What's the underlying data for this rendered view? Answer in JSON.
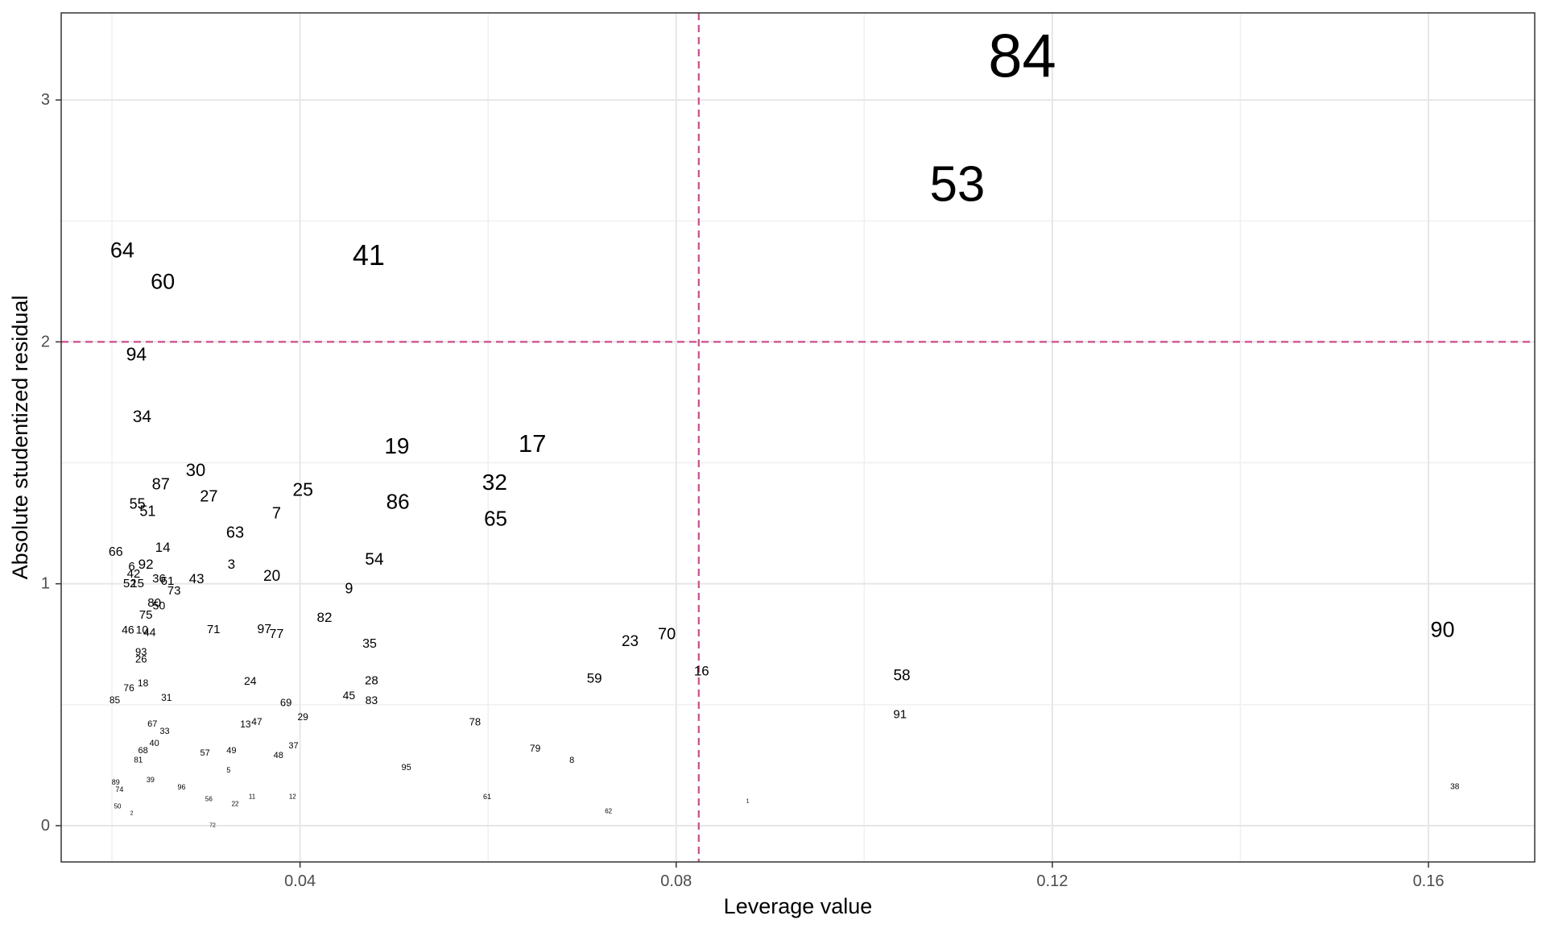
{
  "chart_data": {
    "type": "scatter",
    "marker": "text",
    "xlabel": "Leverage value",
    "ylabel": "Absolute studentized residual",
    "xlim": [
      0.0146,
      0.1713
    ],
    "ylim": [
      -0.15,
      3.36
    ],
    "x_ticks": [
      0.04,
      0.08,
      0.12,
      0.16
    ],
    "x_tick_labels": [
      "0.04",
      "0.08",
      "0.12",
      "0.16"
    ],
    "y_ticks": [
      0,
      1,
      2,
      3
    ],
    "y_tick_labels": [
      "0",
      "1",
      "2",
      "3"
    ],
    "grid": true,
    "label_size_by": "Cook's distance",
    "threshold_lines": {
      "color": "#cc4c8c",
      "style": "dashed",
      "x": 0.0824,
      "y": 2.0
    },
    "points": [
      {
        "label": "84",
        "x": 0.1168,
        "y": 3.18,
        "size": 76
      },
      {
        "label": "53",
        "x": 0.1099,
        "y": 2.65,
        "size": 62
      },
      {
        "label": "41",
        "x": 0.0473,
        "y": 2.36,
        "size": 36
      },
      {
        "label": "64",
        "x": 0.0211,
        "y": 2.38,
        "size": 27
      },
      {
        "label": "60",
        "x": 0.0254,
        "y": 2.25,
        "size": 27
      },
      {
        "label": "94",
        "x": 0.0226,
        "y": 1.95,
        "size": 23
      },
      {
        "label": "34",
        "x": 0.0232,
        "y": 1.69,
        "size": 21
      },
      {
        "label": "19",
        "x": 0.0503,
        "y": 1.57,
        "size": 28
      },
      {
        "label": "17",
        "x": 0.0647,
        "y": 1.58,
        "size": 31
      },
      {
        "label": "30",
        "x": 0.0289,
        "y": 1.47,
        "size": 22
      },
      {
        "label": "87",
        "x": 0.0252,
        "y": 1.41,
        "size": 20
      },
      {
        "label": "32",
        "x": 0.0607,
        "y": 1.42,
        "size": 28
      },
      {
        "label": "25",
        "x": 0.0403,
        "y": 1.39,
        "size": 23
      },
      {
        "label": "27",
        "x": 0.0303,
        "y": 1.36,
        "size": 20
      },
      {
        "label": "86",
        "x": 0.0504,
        "y": 1.34,
        "size": 26
      },
      {
        "label": "55",
        "x": 0.0227,
        "y": 1.33,
        "size": 18
      },
      {
        "label": "51",
        "x": 0.0238,
        "y": 1.3,
        "size": 18
      },
      {
        "label": "7",
        "x": 0.0375,
        "y": 1.29,
        "size": 20
      },
      {
        "label": "65",
        "x": 0.0608,
        "y": 1.27,
        "size": 26
      },
      {
        "label": "63",
        "x": 0.0331,
        "y": 1.21,
        "size": 20
      },
      {
        "label": "14",
        "x": 0.0254,
        "y": 1.15,
        "size": 17
      },
      {
        "label": "66",
        "x": 0.0204,
        "y": 1.13,
        "size": 16
      },
      {
        "label": "92",
        "x": 0.0236,
        "y": 1.08,
        "size": 17
      },
      {
        "label": "54",
        "x": 0.0479,
        "y": 1.1,
        "size": 21
      },
      {
        "label": "3",
        "x": 0.0327,
        "y": 1.08,
        "size": 17
      },
      {
        "label": "6",
        "x": 0.0221,
        "y": 1.07,
        "size": 15
      },
      {
        "label": "42",
        "x": 0.0223,
        "y": 1.04,
        "size": 15
      },
      {
        "label": "20",
        "x": 0.037,
        "y": 1.03,
        "size": 19
      },
      {
        "label": "43",
        "x": 0.029,
        "y": 1.02,
        "size": 17
      },
      {
        "label": "36",
        "x": 0.025,
        "y": 1.02,
        "size": 15
      },
      {
        "label": "61",
        "x": 0.0259,
        "y": 1.01,
        "size": 15
      },
      {
        "label": "52",
        "x": 0.0219,
        "y": 1.0,
        "size": 15
      },
      {
        "label": "15",
        "x": 0.0227,
        "y": 1.0,
        "size": 15
      },
      {
        "label": "9",
        "x": 0.0452,
        "y": 0.98,
        "size": 18
      },
      {
        "label": "73",
        "x": 0.0266,
        "y": 0.97,
        "size": 15
      },
      {
        "label": "80",
        "x": 0.0245,
        "y": 0.92,
        "size": 15
      },
      {
        "label": "50",
        "x": 0.025,
        "y": 0.91,
        "size": 14
      },
      {
        "label": "75",
        "x": 0.0236,
        "y": 0.87,
        "size": 15
      },
      {
        "label": "82",
        "x": 0.0426,
        "y": 0.86,
        "size": 17
      },
      {
        "label": "46",
        "x": 0.0217,
        "y": 0.81,
        "size": 14
      },
      {
        "label": "10",
        "x": 0.0232,
        "y": 0.81,
        "size": 14
      },
      {
        "label": "44",
        "x": 0.024,
        "y": 0.8,
        "size": 14
      },
      {
        "label": "71",
        "x": 0.0308,
        "y": 0.81,
        "size": 15
      },
      {
        "label": "97",
        "x": 0.0362,
        "y": 0.81,
        "size": 16
      },
      {
        "label": "77",
        "x": 0.0375,
        "y": 0.79,
        "size": 16
      },
      {
        "label": "90",
        "x": 0.1615,
        "y": 0.81,
        "size": 27
      },
      {
        "label": "70",
        "x": 0.079,
        "y": 0.79,
        "size": 20
      },
      {
        "label": "23",
        "x": 0.0751,
        "y": 0.76,
        "size": 19
      },
      {
        "label": "35",
        "x": 0.0474,
        "y": 0.75,
        "size": 16
      },
      {
        "label": "93",
        "x": 0.0231,
        "y": 0.72,
        "size": 13
      },
      {
        "label": "26",
        "x": 0.0231,
        "y": 0.69,
        "size": 13
      },
      {
        "label": "16",
        "x": 0.0827,
        "y": 0.64,
        "size": 17
      },
      {
        "label": "58",
        "x": 0.104,
        "y": 0.62,
        "size": 19
      },
      {
        "label": "59",
        "x": 0.0713,
        "y": 0.61,
        "size": 17
      },
      {
        "label": "24",
        "x": 0.0347,
        "y": 0.6,
        "size": 14
      },
      {
        "label": "28",
        "x": 0.0476,
        "y": 0.6,
        "size": 15
      },
      {
        "label": "18",
        "x": 0.0233,
        "y": 0.59,
        "size": 12
      },
      {
        "label": "76",
        "x": 0.0218,
        "y": 0.57,
        "size": 12
      },
      {
        "label": "45",
        "x": 0.0452,
        "y": 0.54,
        "size": 14
      },
      {
        "label": "85",
        "x": 0.0203,
        "y": 0.52,
        "size": 12
      },
      {
        "label": "31",
        "x": 0.0258,
        "y": 0.53,
        "size": 12
      },
      {
        "label": "83",
        "x": 0.0476,
        "y": 0.52,
        "size": 14
      },
      {
        "label": "69",
        "x": 0.0385,
        "y": 0.51,
        "size": 13
      },
      {
        "label": "91",
        "x": 0.1038,
        "y": 0.46,
        "size": 15
      },
      {
        "label": "29",
        "x": 0.0403,
        "y": 0.45,
        "size": 12
      },
      {
        "label": "78",
        "x": 0.0586,
        "y": 0.43,
        "size": 13
      },
      {
        "label": "67",
        "x": 0.0243,
        "y": 0.42,
        "size": 11
      },
      {
        "label": "13",
        "x": 0.0342,
        "y": 0.42,
        "size": 12
      },
      {
        "label": "47",
        "x": 0.0354,
        "y": 0.43,
        "size": 12
      },
      {
        "label": "33",
        "x": 0.0256,
        "y": 0.39,
        "size": 11
      },
      {
        "label": "40",
        "x": 0.0245,
        "y": 0.34,
        "size": 11
      },
      {
        "label": "37",
        "x": 0.0393,
        "y": 0.33,
        "size": 11
      },
      {
        "label": "79",
        "x": 0.065,
        "y": 0.32,
        "size": 12
      },
      {
        "label": "49",
        "x": 0.0327,
        "y": 0.31,
        "size": 11
      },
      {
        "label": "68",
        "x": 0.0233,
        "y": 0.31,
        "size": 11
      },
      {
        "label": "57",
        "x": 0.0299,
        "y": 0.3,
        "size": 11
      },
      {
        "label": "48",
        "x": 0.0377,
        "y": 0.29,
        "size": 11
      },
      {
        "label": "8",
        "x": 0.0689,
        "y": 0.27,
        "size": 11
      },
      {
        "label": "81",
        "x": 0.0228,
        "y": 0.27,
        "size": 10
      },
      {
        "label": "95",
        "x": 0.0513,
        "y": 0.24,
        "size": 11
      },
      {
        "label": "5",
        "x": 0.0324,
        "y": 0.23,
        "size": 9
      },
      {
        "label": "39",
        "x": 0.0241,
        "y": 0.19,
        "size": 9
      },
      {
        "label": "89",
        "x": 0.0204,
        "y": 0.18,
        "size": 9
      },
      {
        "label": "96",
        "x": 0.0274,
        "y": 0.16,
        "size": 9
      },
      {
        "label": "74",
        "x": 0.0208,
        "y": 0.15,
        "size": 9
      },
      {
        "label": "38",
        "x": 0.1628,
        "y": 0.16,
        "size": 10
      },
      {
        "label": "61",
        "x": 0.0599,
        "y": 0.12,
        "size": 9
      },
      {
        "label": "12",
        "x": 0.0392,
        "y": 0.12,
        "size": 8
      },
      {
        "label": "11",
        "x": 0.0349,
        "y": 0.12,
        "size": 8
      },
      {
        "label": "56",
        "x": 0.0303,
        "y": 0.11,
        "size": 8
      },
      {
        "label": "22",
        "x": 0.0331,
        "y": 0.09,
        "size": 8
      },
      {
        "label": "1",
        "x": 0.0876,
        "y": 0.1,
        "size": 7
      },
      {
        "label": "50",
        "x": 0.0206,
        "y": 0.08,
        "size": 8
      },
      {
        "label": "62",
        "x": 0.0728,
        "y": 0.06,
        "size": 8
      },
      {
        "label": "2",
        "x": 0.0221,
        "y": 0.05,
        "size": 7
      },
      {
        "label": "72",
        "x": 0.0307,
        "y": 0.0,
        "size": 7
      }
    ]
  }
}
